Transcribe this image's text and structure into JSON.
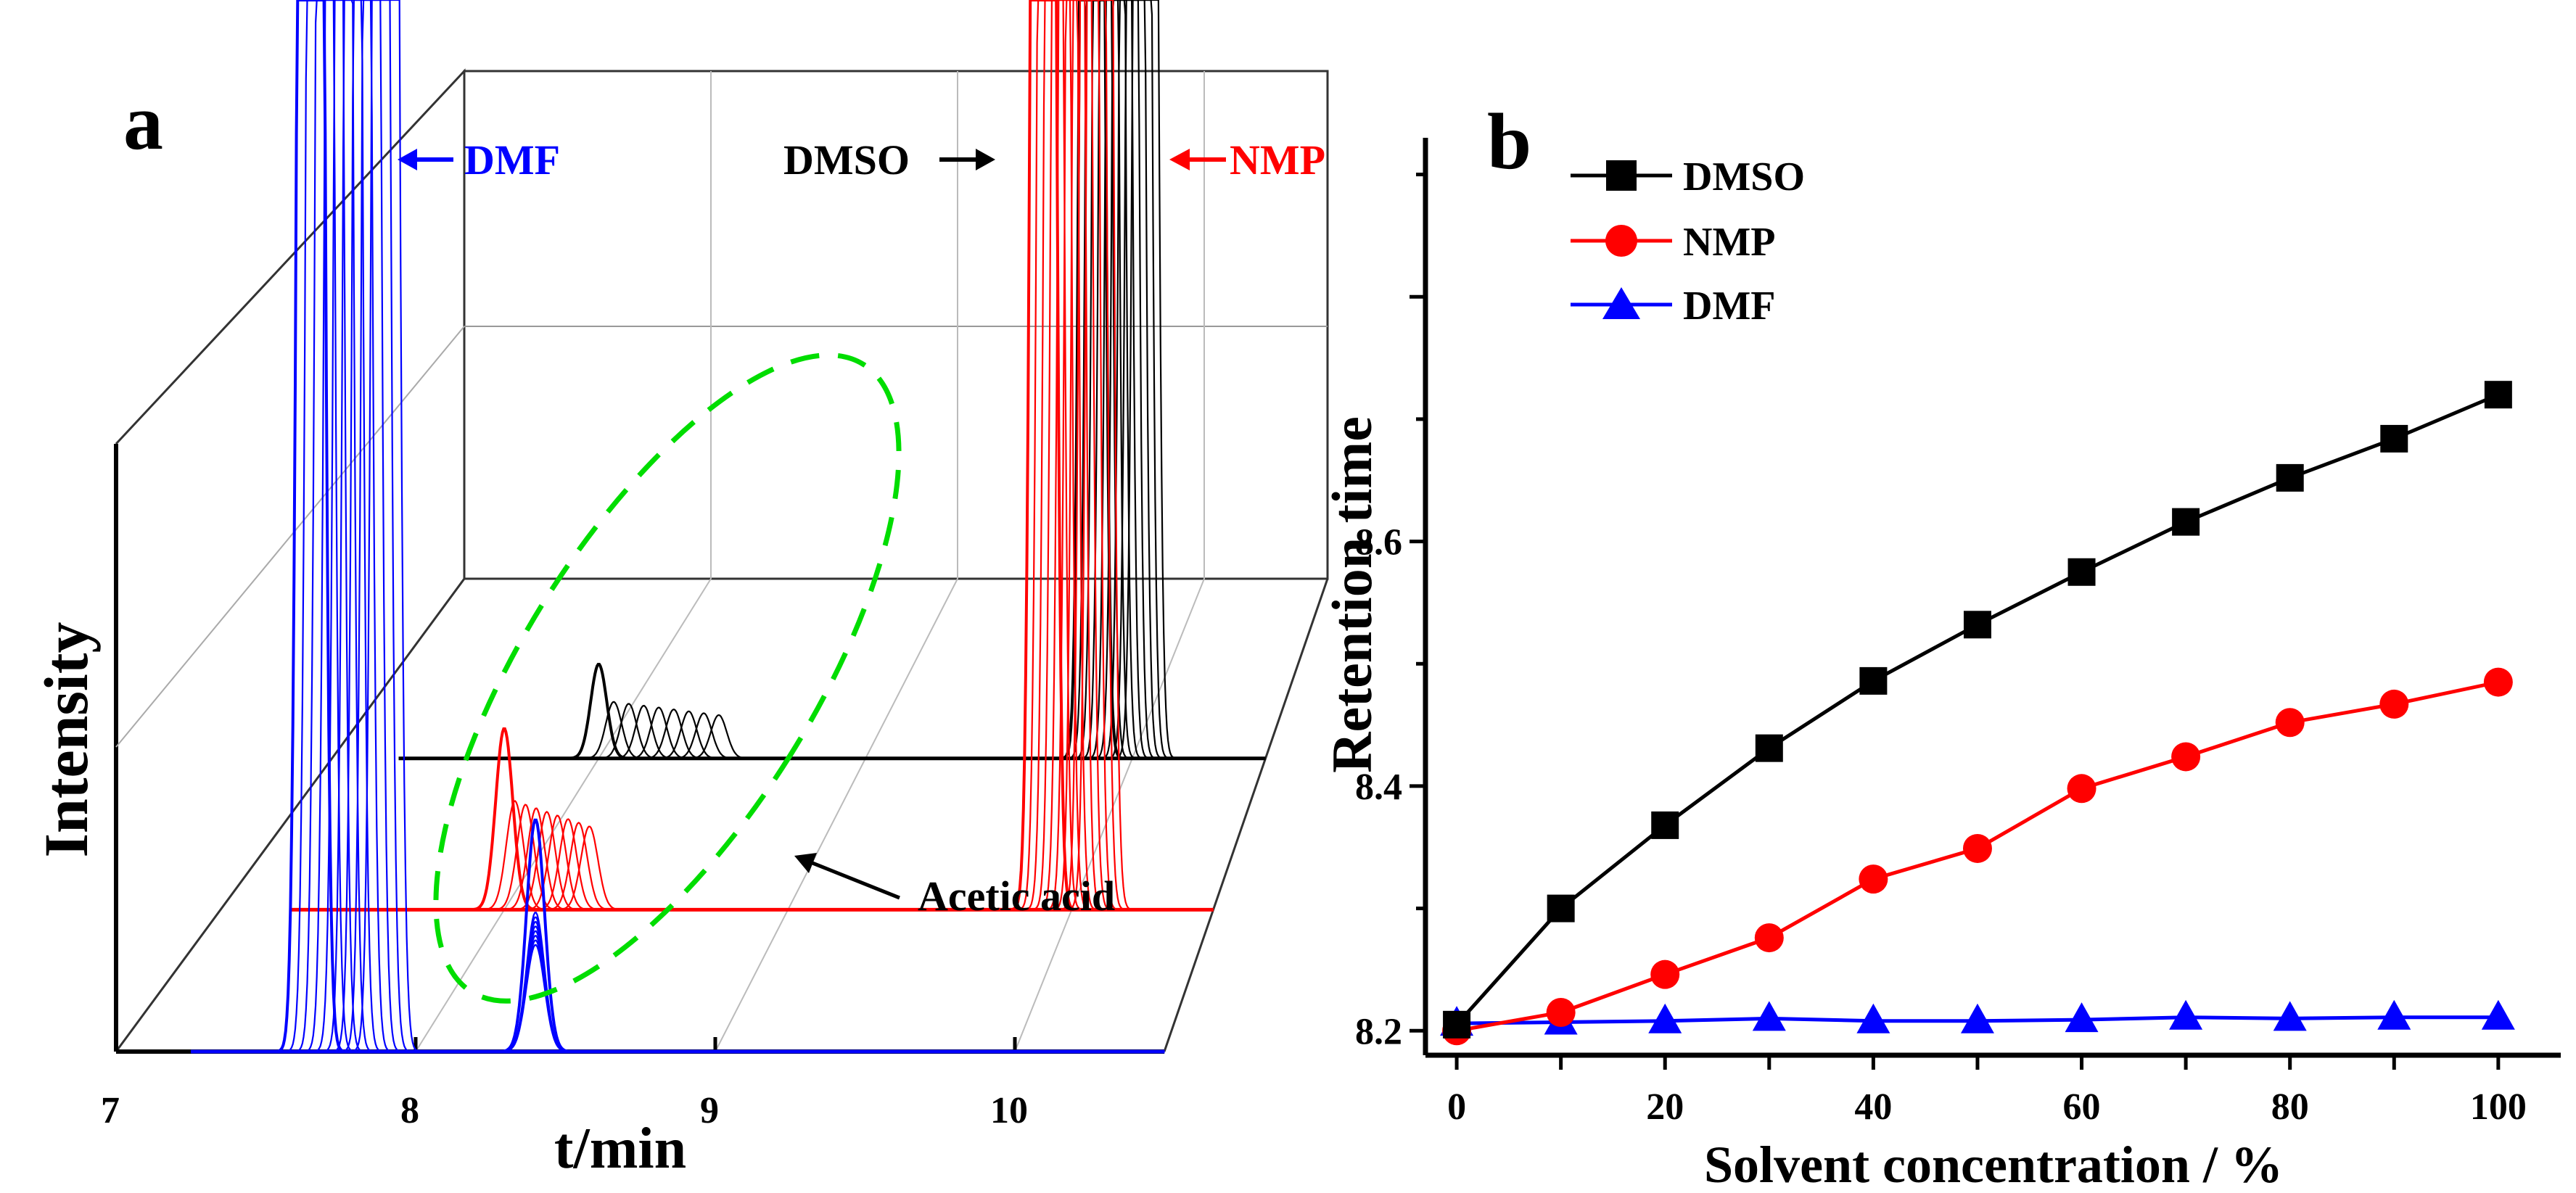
{
  "colors": {
    "dmso": "#000000",
    "nmp": "#ff0000",
    "dmf": "#0000ff",
    "annotation": "#00dd00"
  },
  "chart_data": [
    {
      "panel": "a",
      "type": "line",
      "subtype": "3d-waterfall chromatogram",
      "xlabel": "t/min",
      "ylabel": "Intensity",
      "x_ticks": [
        "7",
        "8",
        "9",
        "10"
      ],
      "xlim": [
        7,
        10.5
      ],
      "series": [
        {
          "name": "DMF",
          "color": "#0000ff",
          "solvent_peak_min": [
            7.65,
            7.9
          ],
          "acetic_acid_peak_min": 8.4,
          "acetic_acid_peak_rel_height": 0.55
        },
        {
          "name": "NMP",
          "color": "#ff0000",
          "solvent_peak_min": [
            9.9,
            10.1
          ],
          "acetic_acid_peak_min": [
            8.0,
            8.3
          ],
          "acetic_acid_peak_rel_height": 0.45
        },
        {
          "name": "DMSO",
          "color": "#000000",
          "solvent_peak_min": [
            9.85,
            10.05
          ],
          "acetic_acid_peak_min": [
            8.0,
            8.45
          ],
          "acetic_acid_peak_rel_height": 0.2
        }
      ],
      "annotations": [
        {
          "label": "DMF",
          "target": "DMF solvent peak"
        },
        {
          "label": "DMSO",
          "target": "DMSO solvent peak"
        },
        {
          "label": "NMP",
          "target": "NMP solvent peak"
        },
        {
          "label": "Acetic acid",
          "target": "dashed ellipse around acetic acid peaks"
        }
      ]
    },
    {
      "panel": "b",
      "type": "line",
      "title": "",
      "xlabel": "Solvent concentration / %",
      "ylabel": "Retention time",
      "xlim": [
        -3,
        106
      ],
      "ylim": [
        8.18,
        8.93
      ],
      "x_ticks": [
        0,
        20,
        40,
        60,
        80,
        100
      ],
      "y_ticks": [
        8.2,
        8.4,
        8.6
      ],
      "x": [
        0,
        10,
        20,
        30,
        40,
        50,
        60,
        70,
        80,
        90,
        100
      ],
      "legend_position": "top-left",
      "series": [
        {
          "name": "DMSO",
          "marker": "square",
          "color": "#000000",
          "values": [
            8.205,
            8.3,
            8.368,
            8.431,
            8.486,
            8.532,
            8.575,
            8.616,
            8.652,
            8.684,
            8.72
          ]
        },
        {
          "name": "NMP",
          "marker": "circle",
          "color": "#ff0000",
          "values": [
            8.2,
            8.215,
            8.246,
            8.276,
            8.324,
            8.349,
            8.398,
            8.424,
            8.452,
            8.467,
            8.485
          ]
        },
        {
          "name": "DMF",
          "marker": "triangle",
          "color": "#0000ff",
          "values": [
            8.206,
            8.207,
            8.208,
            8.21,
            8.208,
            8.208,
            8.209,
            8.211,
            8.21,
            8.211,
            8.211
          ]
        }
      ]
    }
  ],
  "panel_a": {
    "label": "a",
    "ylabel": "Intensity",
    "xlabel": "t/min",
    "ticks": [
      "7",
      "8",
      "9",
      "10"
    ],
    "label_dmf": "DMF",
    "label_dmso": "DMSO",
    "label_nmp": "NMP",
    "label_acetic": "Acetic acid"
  },
  "panel_b": {
    "label": "b",
    "xlabel": "Solvent concentration / %",
    "ylabel": "Retention time",
    "legend": [
      "DMSO",
      "NMP",
      "DMF"
    ]
  }
}
